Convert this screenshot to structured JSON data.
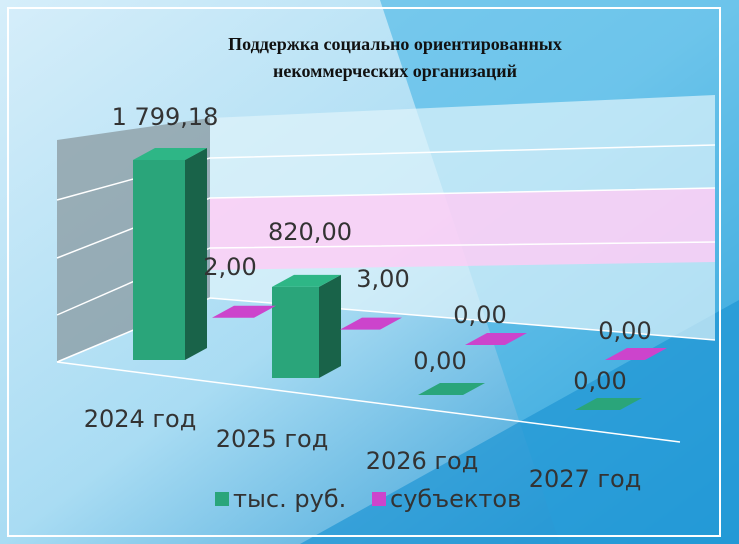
{
  "chart_data": {
    "type": "bar3d",
    "title": "Поддержка социально ориентированных некоммерческих организаций",
    "categories": [
      "2024 год",
      "2025 год",
      "2026 год",
      "2027 год"
    ],
    "series": [
      {
        "name": "тыс. руб.",
        "color": "#2aa57a",
        "values": [
          1799.18,
          820,
          0,
          0
        ],
        "value_labels": [
          "1 799,18",
          "820,00",
          "0,00",
          "0,00"
        ]
      },
      {
        "name": "субъектов",
        "color": "#cc44cc",
        "values": [
          2,
          3,
          0,
          0
        ],
        "value_labels": [
          "2,00",
          "3,00",
          "0,00",
          "0,00"
        ]
      }
    ],
    "legend": "bottom"
  }
}
